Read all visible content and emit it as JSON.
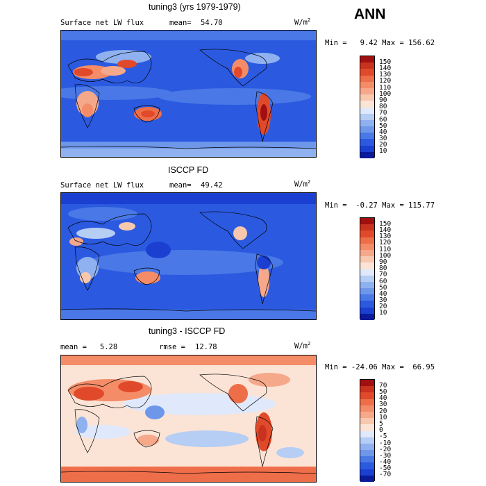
{
  "header": {
    "season": "ANN"
  },
  "panels": [
    {
      "title": "tuning3 (yrs 1979-1979)",
      "left_label": "Surface net LW flux",
      "stat_label": "mean=",
      "stat_value": "54.70",
      "units": "W/m",
      "units_exp": "2",
      "minmax": "Min =   9.42 Max = 156.62",
      "levels": [
        "150",
        "140",
        "130",
        "120",
        "110",
        "100",
        "90",
        "80",
        "70",
        "60",
        "50",
        "40",
        "30",
        "20",
        "10"
      ],
      "colors": [
        "#a01010",
        "#c8321e",
        "#e04a2a",
        "#ef6e4a",
        "#f48c68",
        "#f6a88a",
        "#f8c8ae",
        "#fbe4d6",
        "#dfe9fb",
        "#b6cdf4",
        "#8fb1ef",
        "#6e97ea",
        "#4a78e6",
        "#2b5ae0",
        "#1a3fd1",
        "#0a1a9a"
      ]
    },
    {
      "title": "ISCCP FD",
      "left_label": "Surface net LW flux",
      "stat_label": "mean=",
      "stat_value": "49.42",
      "units": "W/m",
      "units_exp": "2",
      "minmax": "Min =  -0.27 Max = 115.77",
      "levels": [
        "150",
        "140",
        "130",
        "120",
        "110",
        "100",
        "90",
        "80",
        "70",
        "60",
        "50",
        "40",
        "30",
        "20",
        "10"
      ],
      "colors": [
        "#a01010",
        "#c8321e",
        "#e04a2a",
        "#ef6e4a",
        "#f48c68",
        "#f6a88a",
        "#f8c8ae",
        "#fbe4d6",
        "#dfe9fb",
        "#b6cdf4",
        "#8fb1ef",
        "#6e97ea",
        "#4a78e6",
        "#2b5ae0",
        "#1a3fd1",
        "#0a1a9a"
      ]
    },
    {
      "title": "tuning3 - ISCCP FD",
      "left_label": "mean =   5.28",
      "stat_label": "rmse =",
      "stat_value": "12.78",
      "units": "W/m",
      "units_exp": "2",
      "minmax": "Min = -24.06 Max =  66.95",
      "levels": [
        "70",
        "50",
        "40",
        "30",
        "20",
        "10",
        "5",
        "0",
        "-5",
        "-10",
        "-20",
        "-30",
        "-40",
        "-50",
        "-70"
      ],
      "colors": [
        "#a01010",
        "#c8321e",
        "#e04a2a",
        "#ef6e4a",
        "#f48c68",
        "#f6a88a",
        "#f8c8ae",
        "#fbe4d6",
        "#dfe9fb",
        "#b6cdf4",
        "#8fb1ef",
        "#6e97ea",
        "#4a78e6",
        "#2b5ae0",
        "#1a3fd1",
        "#0a1a9a"
      ]
    }
  ],
  "chart_data": [
    {
      "type": "heatmap",
      "title": "tuning3 (yrs 1979-1979)",
      "variable": "Surface net LW flux",
      "mean": 54.7,
      "min": 9.42,
      "max": 156.62,
      "units": "W/m2",
      "contour_levels": [
        10,
        20,
        30,
        40,
        50,
        60,
        70,
        80,
        90,
        100,
        110,
        120,
        130,
        140,
        150
      ]
    },
    {
      "type": "heatmap",
      "title": "ISCCP FD",
      "variable": "Surface net LW flux",
      "mean": 49.42,
      "min": -0.27,
      "max": 115.77,
      "units": "W/m2",
      "contour_levels": [
        10,
        20,
        30,
        40,
        50,
        60,
        70,
        80,
        90,
        100,
        110,
        120,
        130,
        140,
        150
      ]
    },
    {
      "type": "heatmap",
      "title": "tuning3 - ISCCP FD",
      "mean": 5.28,
      "rmse": 12.78,
      "min": -24.06,
      "max": 66.95,
      "units": "W/m2",
      "contour_levels": [
        -70,
        -50,
        -40,
        -30,
        -20,
        -10,
        -5,
        0,
        5,
        10,
        20,
        30,
        40,
        50,
        70
      ]
    }
  ]
}
